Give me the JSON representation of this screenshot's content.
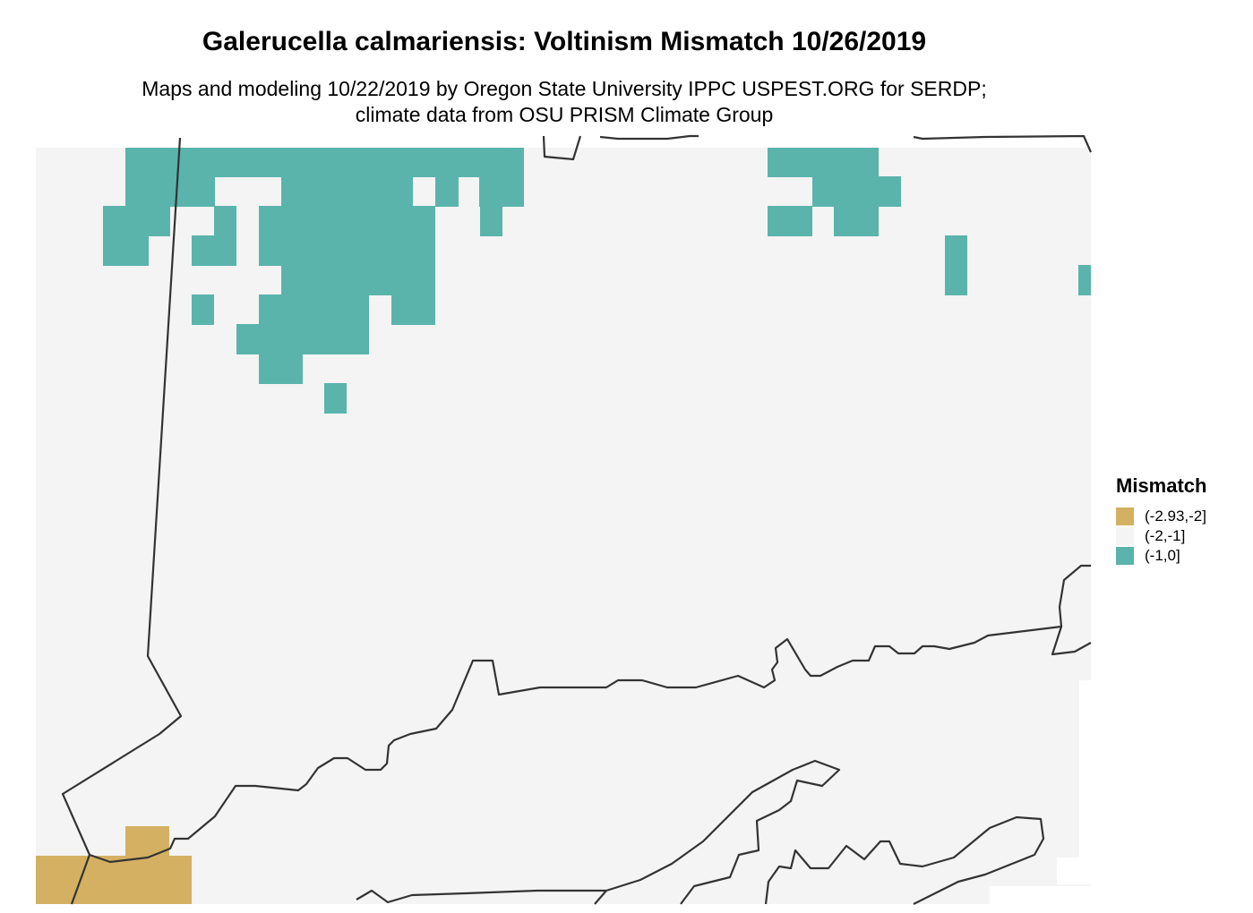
{
  "title": "Galerucella calmariensis: Voltinism Mismatch 10/26/2019",
  "subtitle": "Maps and modeling 10/22/2019 by Oregon State University IPPC USPEST.ORG for SERDP; climate data from OSU PRISM Climate Group",
  "legend": {
    "title": "Mismatch",
    "items": [
      {
        "label": "(-2.93,-2]",
        "color": "#d4b062"
      },
      {
        "label": "(-2,-1]",
        "color": "#f4f4f4"
      },
      {
        "label": "(-1,0]",
        "color": "#5ab4ac"
      }
    ]
  },
  "colors": {
    "background": "#f4f4f4",
    "border": "#333333"
  }
}
